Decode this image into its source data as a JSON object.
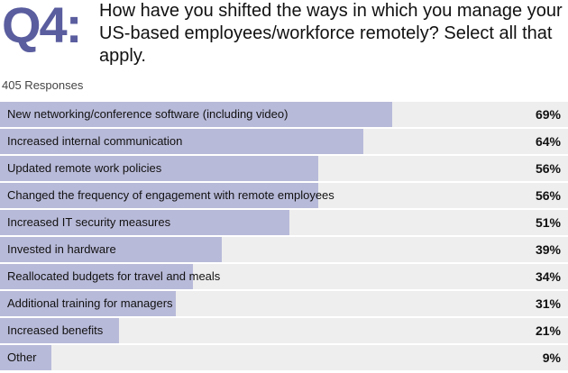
{
  "header": {
    "question_number": "Q4:",
    "question_text": "How have you shifted the ways in which you manage your US-based employees/workforce remotely? Select all that apply."
  },
  "responses_label": "405 Responses",
  "colors": {
    "accent": "#5a5d9e",
    "bar": "#b8bad9",
    "track": "#eeeeee"
  },
  "chart_data": {
    "type": "bar",
    "orientation": "horizontal",
    "categories": [
      "New networking/conference software (including video)",
      "Increased internal communication",
      "Updated remote work policies",
      "Changed the frequency of engagement with remote employees",
      "Increased IT security measures",
      "Invested in hardware",
      "Reallocated budgets for travel and meals",
      "Additional training for managers",
      "Increased benefits",
      "Other"
    ],
    "values": [
      69,
      64,
      56,
      56,
      51,
      39,
      34,
      31,
      21,
      9
    ],
    "value_labels": [
      "69%",
      "64%",
      "56%",
      "56%",
      "51%",
      "39%",
      "34%",
      "31%",
      "21%",
      "9%"
    ],
    "xlim": [
      0,
      100
    ],
    "grid": false
  }
}
